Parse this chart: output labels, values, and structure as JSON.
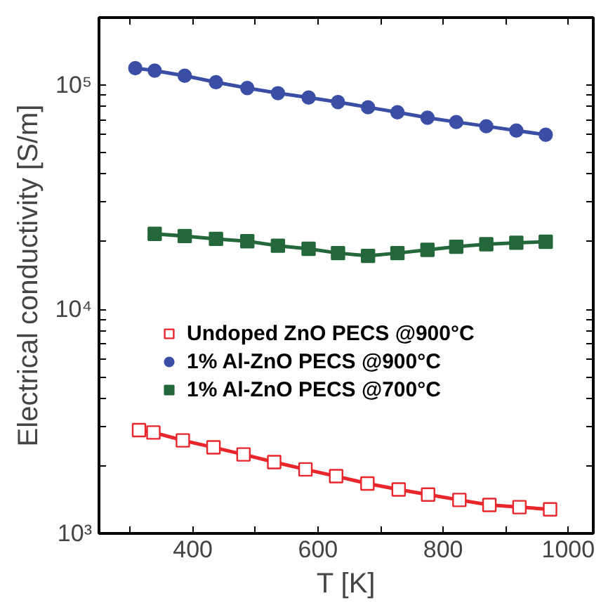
{
  "chart_data": {
    "type": "line",
    "xlabel": "T [K]",
    "ylabel": "Electrical conductivity [S/m]",
    "log": "y",
    "xlim": [
      250,
      1040
    ],
    "ylim": [
      1000,
      200000
    ],
    "xticks": [
      {
        "value": 300,
        "label": null
      },
      400,
      {
        "value": 500,
        "label": null
      },
      600,
      {
        "value": 700,
        "label": null
      },
      800,
      {
        "value": 900,
        "label": null
      },
      1000
    ],
    "yticks": [
      {
        "value": 1000,
        "label": "10³"
      },
      {
        "value": 2000,
        "label": null
      },
      {
        "value": 3000,
        "label": null
      },
      {
        "value": 4000,
        "label": null
      },
      {
        "value": 5000,
        "label": null
      },
      {
        "value": 6000,
        "label": null
      },
      {
        "value": 7000,
        "label": null
      },
      {
        "value": 8000,
        "label": null
      },
      {
        "value": 9000,
        "label": null
      },
      {
        "value": 10000,
        "label": "10⁴"
      },
      {
        "value": 20000,
        "label": null
      },
      {
        "value": 30000,
        "label": null
      },
      {
        "value": 40000,
        "label": null
      },
      {
        "value": 50000,
        "label": null
      },
      {
        "value": 60000,
        "label": null
      },
      {
        "value": 70000,
        "label": null
      },
      {
        "value": 80000,
        "label": null
      },
      {
        "value": 90000,
        "label": null
      },
      {
        "value": 100000,
        "label": "10⁵"
      }
    ],
    "grid": false,
    "legend": "center",
    "line_style": "solid",
    "series": [
      {
        "name": "Undoped ZnO PECS @900°C",
        "color": "#e8262b",
        "marker": "square_open",
        "x": [
          314,
          337,
          384,
          433,
          481,
          530,
          580,
          629,
          679,
          729,
          776,
          826,
          874,
          922,
          971
        ],
        "values": [
          2890,
          2820,
          2600,
          2420,
          2250,
          2080,
          1930,
          1800,
          1670,
          1570,
          1490,
          1410,
          1340,
          1310,
          1280
        ]
      },
      {
        "name": "1% Al-ZnO PECS @900°C",
        "color": "#3a4ea6",
        "marker": "circle",
        "x": [
          308,
          339,
          387,
          437,
          487,
          536,
          585,
          632,
          680,
          727,
          775,
          821,
          869,
          917,
          964
        ],
        "values": [
          119000,
          116000,
          110000,
          103000,
          97000,
          92000,
          88000,
          84000,
          79600,
          75600,
          71500,
          68400,
          65500,
          62700,
          60000
        ]
      },
      {
        "name": "1% Al-ZnO PECS @700°C",
        "color": "#23673a",
        "marker": "square",
        "x": [
          339,
          387,
          437,
          487,
          536,
          585,
          632,
          680,
          727,
          775,
          821,
          869,
          917,
          964
        ],
        "values": [
          21700,
          21200,
          20600,
          20100,
          19200,
          18600,
          17800,
          17300,
          17800,
          18400,
          19000,
          19500,
          19800,
          20000
        ]
      }
    ]
  }
}
